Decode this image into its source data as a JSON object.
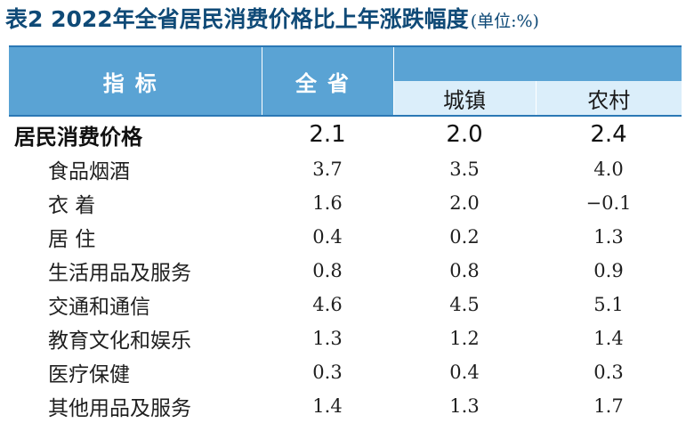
{
  "title": {
    "main": "表2  2022年全省居民消费价格比上年涨跌幅度",
    "unit": "(单位:%)"
  },
  "table": {
    "headers": {
      "indicator": "指标",
      "province": "全省",
      "urban": "城镇",
      "rural": "农村"
    },
    "total": {
      "label": "居民消费价格",
      "province": "2.1",
      "urban": "2.0",
      "rural": "2.4"
    },
    "rows": [
      {
        "label": "食品烟酒",
        "province": "3.7",
        "urban": "3.5",
        "rural": "4.0"
      },
      {
        "label": "衣  着",
        "province": "1.6",
        "urban": "2.0",
        "rural": "−0.1"
      },
      {
        "label": "居  住",
        "province": "0.4",
        "urban": "0.2",
        "rural": "1.3"
      },
      {
        "label": "生活用品及服务",
        "province": "0.8",
        "urban": "0.8",
        "rural": "0.9"
      },
      {
        "label": "交通和通信",
        "province": "4.6",
        "urban": "4.5",
        "rural": "5.1"
      },
      {
        "label": "教育文化和娱乐",
        "province": "1.3",
        "urban": "1.2",
        "rural": "1.4"
      },
      {
        "label": "医疗保健",
        "province": "0.3",
        "urban": "0.4",
        "rural": "0.3"
      },
      {
        "label": "其他用品及服务",
        "province": "1.4",
        "urban": "1.3",
        "rural": "1.7"
      }
    ]
  },
  "colors": {
    "header_dark": "#5aa3d4",
    "header_light": "#dbeefa",
    "rule": "#2b78b5",
    "title": "#0f4a77"
  }
}
